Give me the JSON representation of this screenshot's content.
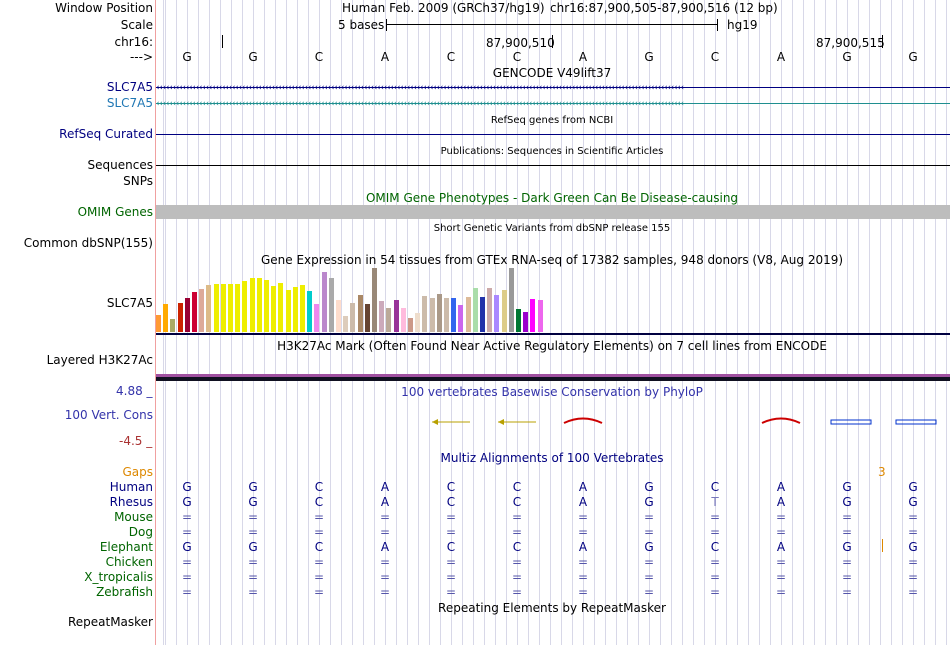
{
  "header": {
    "labels": {
      "window_position": "Window Position",
      "scale": "Scale",
      "chrom": "chr16:",
      "strand": "--->"
    },
    "assembly_text": "Human Feb. 2009 (GRCh37/hg19)",
    "position_text": "chr16:87,900,505-87,900,516 (12 bp)",
    "scale_text": "5 bases",
    "scale_db": "hg19",
    "coord_1": "87,900,510",
    "coord_2": "87,900,515"
  },
  "sequence": [
    "G",
    "G",
    "C",
    "A",
    "C",
    "C",
    "A",
    "G",
    "C",
    "A",
    "G",
    "G"
  ],
  "tracks": {
    "gencode": {
      "title": "GENCODE V49lift37",
      "items": [
        "SLC7A5",
        "SLC7A5"
      ],
      "colors": [
        "#000080",
        "#1f77b4"
      ]
    },
    "refseq": {
      "title": "RefSeq genes from NCBI",
      "label": "RefSeq Curated"
    },
    "publications": {
      "title": "Publications: Sequences in Scientific Articles",
      "label": "Sequences"
    },
    "snps": {
      "label": "SNPs"
    },
    "omim": {
      "title": "OMIM Gene Phenotypes - Dark Green Can Be Disease-causing",
      "label": "OMIM Genes",
      "color": "#006400"
    },
    "dbsnp": {
      "title": "Short Genetic Variants from dbSNP release 155",
      "label": "Common dbSNP(155)"
    },
    "gtex": {
      "title": "Gene Expression in 54 tissues from GTEx RNA-seq of 17382 samples, 948 donors (V8, Aug 2019)",
      "label": "SLC7A5",
      "values": [
        0.27,
        0.44,
        0.2,
        0.45,
        0.53,
        0.62,
        0.67,
        0.73,
        0.75,
        0.75,
        0.75,
        0.75,
        0.8,
        0.85,
        0.84,
        0.82,
        0.72,
        0.77,
        0.65,
        0.7,
        0.74,
        0.64,
        0.44,
        0.94,
        0.84,
        0.5,
        0.25,
        0.45,
        0.58,
        0.43,
        1.0,
        0.48,
        0.38,
        0.5,
        0.37,
        0.22,
        0.3,
        0.56,
        0.53,
        0.6,
        0.53,
        0.53,
        0.42,
        0.55,
        0.68,
        0.55,
        0.68,
        0.58,
        0.65,
        1.0,
        0.36,
        0.32,
        0.52,
        0.5
      ],
      "colors": [
        "#ff9933",
        "#ffaa00",
        "#aaaa66",
        "#cc2200",
        "#990033",
        "#cc0033",
        "#ddaa99",
        "#ddbb88",
        "#eeee00",
        "#eeee00",
        "#eeee00",
        "#eeee00",
        "#eeee00",
        "#eeee00",
        "#eeee00",
        "#eeee00",
        "#eeee00",
        "#eeee00",
        "#eeee00",
        "#eeee00",
        "#eeee00",
        "#00cccc",
        "#ee88ee",
        "#bb88cc",
        "#aaaaaa",
        "#ffddcc",
        "#ddccbb",
        "#ccbbaa",
        "#aa8866",
        "#664433",
        "#998877",
        "#ccaabb",
        "#bbaa99",
        "#993399",
        "#ffbbdd",
        "#cc9988",
        "#eeddcc",
        "#ccbbaa",
        "#ccbbaa",
        "#aa9988",
        "#ccbbaa",
        "#3366ee",
        "#cc66ee",
        "#ddbb99",
        "#aaddaa",
        "#2233aa",
        "#ccaaaa",
        "#aa88ff",
        "#ddcc88",
        "#999999",
        "#007733",
        "#9900cc",
        "#ff00ff",
        "#ee66ee"
      ]
    },
    "h3k27ac": {
      "title": "H3K27Ac Mark (Often Found Near Active Regulatory Elements) on 7 cell lines from ENCODE",
      "label": "Layered H3K27Ac"
    },
    "phylop": {
      "title": "100 vertebrates Basewise Conservation by PhyloP",
      "label": "100 Vert. Cons",
      "ymax": "4.88 _",
      "ymin": "-4.5 _"
    },
    "multiz": {
      "title": "Multiz Alignments of 100 Vertebrates",
      "gaps_label": "Gaps",
      "gap_count": "3",
      "species": [
        {
          "name": "Human",
          "row": [
            "G",
            "G",
            "C",
            "A",
            "C",
            "C",
            "A",
            "G",
            "C",
            "A",
            "G",
            "G"
          ]
        },
        {
          "name": "Rhesus",
          "row": [
            "G",
            "G",
            "C",
            "A",
            "C",
            "C",
            "A",
            "G",
            "T",
            "A",
            "G",
            "G"
          ]
        },
        {
          "name": "Mouse",
          "row": [
            "=",
            "=",
            "=",
            "=",
            "=",
            "=",
            "=",
            "=",
            "=",
            "=",
            "=",
            "="
          ]
        },
        {
          "name": "Dog",
          "row": [
            "=",
            "=",
            "=",
            "=",
            "=",
            "=",
            "=",
            "=",
            "=",
            "=",
            "=",
            "="
          ]
        },
        {
          "name": "Elephant",
          "row": [
            "G",
            "G",
            "C",
            "A",
            "C",
            "C",
            "A",
            "G",
            "C",
            "A",
            "G",
            "G"
          ]
        },
        {
          "name": "Chicken",
          "row": [
            "=",
            "=",
            "=",
            "=",
            "=",
            "=",
            "=",
            "=",
            "=",
            "=",
            "=",
            "="
          ]
        },
        {
          "name": "X_tropicalis",
          "row": [
            "=",
            "=",
            "=",
            "=",
            "=",
            "=",
            "=",
            "=",
            "=",
            "=",
            "=",
            "="
          ]
        },
        {
          "name": "Zebrafish",
          "row": [
            "=",
            "=",
            "=",
            "=",
            "=",
            "=",
            "=",
            "=",
            "=",
            "=",
            "=",
            "="
          ]
        }
      ]
    },
    "repeatmasker": {
      "title": "Repeating Elements by RepeatMasker",
      "label": "RepeatMasker"
    }
  },
  "colors": {
    "navy": "#000080",
    "phylop_label": "#3333aa",
    "phylop_neg": "#aa3333",
    "gaps": "#dd8800",
    "species_low": "#006400"
  }
}
